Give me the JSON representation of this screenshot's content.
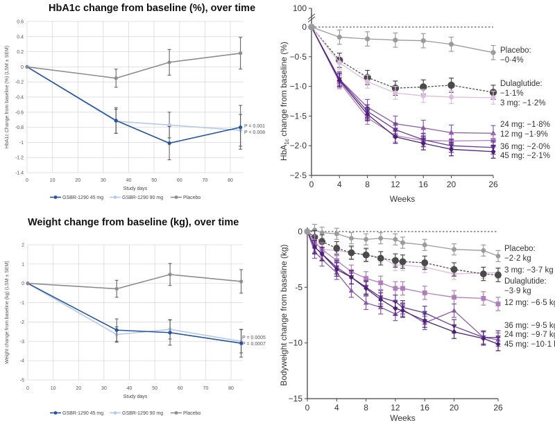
{
  "chart_data": [
    {
      "type": "line",
      "title": "HbA1c change from baseline (%), over time",
      "xlabel": "Study days",
      "ylabel": "HbA1c Change from baseline (%) (LSM ± SEM)",
      "xlim": [
        0,
        85
      ],
      "ylim": [
        -1.4,
        0.6
      ],
      "xticks": [
        "0",
        "10",
        "20",
        "30",
        "40",
        "50",
        "60",
        "70",
        "80"
      ],
      "yticks": [
        "0.6",
        "0.4",
        "0.2",
        "0",
        "-0.2",
        "-0.4",
        "-0.6",
        "-0.8",
        "-1",
        "-1.2",
        "-1.4"
      ],
      "grid": true,
      "legend": "bottom",
      "x": [
        0,
        35,
        56,
        84
      ],
      "series": [
        {
          "name": "GSBR-1290 45 mg",
          "color": "#2452a4",
          "values": [
            0,
            -0.71,
            -1.01,
            -0.8
          ],
          "sem": [
            0,
            0.17,
            0.22,
            0.29
          ]
        },
        {
          "name": "GSBR-1290 90 mg",
          "color": "#b4c9ee",
          "values": [
            0,
            -0.72,
            -0.77,
            -0.84
          ],
          "sem": [
            0,
            0.16,
            0.17,
            0.21
          ]
        },
        {
          "name": "Placebo",
          "color": "#8c8c8c",
          "values": [
            0,
            -0.15,
            0.06,
            0.18
          ],
          "sem": [
            0,
            0.12,
            0.17,
            0.21
          ]
        }
      ],
      "annotations": [
        "P = 0.001",
        "P = 0.008"
      ]
    },
    {
      "type": "line",
      "title": "Weight change from baseline (kg), over time",
      "xlabel": "Study days",
      "ylabel": "Weight change from baseline (kg) (LSM ± SEM)",
      "xlim": [
        0,
        85
      ],
      "ylim": [
        -5,
        2
      ],
      "xticks": [
        "0",
        "10",
        "20",
        "30",
        "40",
        "50",
        "60",
        "70",
        "80"
      ],
      "yticks": [
        "2",
        "1",
        "0",
        "-1",
        "-2",
        "-3",
        "-4",
        "-5"
      ],
      "grid": true,
      "legend": "bottom",
      "x": [
        0,
        35,
        56,
        84
      ],
      "series": [
        {
          "name": "GSBR-1290 45 mg",
          "color": "#2452a4",
          "values": [
            0,
            -2.42,
            -2.55,
            -3.1
          ],
          "sem": [
            0,
            0.58,
            0.65,
            0.72
          ]
        },
        {
          "name": "GSBR-1290 90 mg",
          "color": "#b4c9ee",
          "values": [
            0,
            -2.65,
            -2.38,
            -3.0
          ],
          "sem": [
            0,
            0.4,
            0.5,
            0.6
          ]
        },
        {
          "name": "Placebo",
          "color": "#8c8c8c",
          "values": [
            0,
            -0.28,
            0.46,
            0.1
          ],
          "sem": [
            0,
            0.44,
            0.57,
            0.61
          ]
        }
      ],
      "annotations": [
        "P = 0.0005",
        "P = 0.0007"
      ]
    },
    {
      "type": "line",
      "xlabel": "Weeks",
      "ylabel_parts": [
        "HbA",
        "1c",
        " change from baseline (%)"
      ],
      "xlim": [
        0,
        26
      ],
      "ylim": [
        -2.5,
        0
      ],
      "axis_break_label": "100",
      "xticks": [
        "0",
        "4",
        "8",
        "12",
        "16",
        "20",
        "26"
      ],
      "yticks": [
        "0",
        "−0·5",
        "−1·0",
        "−1·5",
        "−2·0",
        "−2·5"
      ],
      "grid": false,
      "x": [
        0,
        4,
        8,
        12,
        16,
        20,
        26
      ],
      "series": [
        {
          "label_lines": [
            "Placebo:",
            "−0·4%"
          ],
          "marker": "circle",
          "color": "#9b9b9b",
          "values": [
            0,
            -0.17,
            -0.2,
            -0.22,
            -0.23,
            -0.29,
            -0.43
          ],
          "sem": 0.12
        },
        {
          "label_lines": [
            "Dulaglutide:",
            "−1·1%"
          ],
          "marker": "circle-lg",
          "dashed": true,
          "color": "#4a4a4a",
          "values": [
            0,
            -0.56,
            -0.85,
            -1.03,
            -1.01,
            -0.98,
            -1.1
          ],
          "sem": 0.12
        },
        {
          "label_lines": [
            "3 mg: −1·2%"
          ],
          "marker": "circle",
          "color": "#dcbde0",
          "values": [
            0,
            -0.6,
            -0.92,
            -1.11,
            -1.16,
            -1.18,
            -1.19
          ],
          "sem": 0.11
        },
        {
          "label_lines": [
            "24 mg: −1·8%"
          ],
          "marker": "triangle",
          "color": "#8758ab",
          "values": [
            0,
            -0.88,
            -1.35,
            -1.63,
            -1.7,
            -1.78,
            -1.79
          ],
          "sem": 0.13
        },
        {
          "label_lines": [
            "12 mg −1·9%"
          ],
          "marker": "square",
          "color": "#b07cc0",
          "values": [
            0,
            -0.93,
            -1.53,
            -1.83,
            -1.91,
            -1.92,
            -1.91
          ],
          "sem": 0.11
        },
        {
          "label_lines": [
            "36 mg: −2·0%"
          ],
          "marker": "tri-down",
          "color": "#66389a",
          "values": [
            0,
            -0.88,
            -1.42,
            -1.73,
            -1.9,
            -2.0,
            -2.03
          ],
          "sem": 0.11
        },
        {
          "label_lines": [
            "45 mg: −2·1%"
          ],
          "marker": "diamond",
          "color": "#4b1f7a",
          "values": [
            0,
            -0.9,
            -1.47,
            -1.85,
            -1.96,
            -2.06,
            -2.1
          ],
          "sem": 0.11
        }
      ]
    },
    {
      "type": "line",
      "xlabel": "Weeks",
      "ylabel": "Bodyweight change from baseline (kg)",
      "xlim": [
        0,
        26
      ],
      "ylim": [
        -15,
        0
      ],
      "xticks": [
        "0",
        "4",
        "8",
        "12",
        "16",
        "20",
        "26"
      ],
      "yticks": [
        "0",
        "-5",
        "−10",
        "−15"
      ],
      "grid": false,
      "x": [
        0,
        1,
        2,
        4,
        6,
        8,
        10,
        12,
        13,
        16,
        20,
        24,
        26
      ],
      "series": [
        {
          "label_lines": [
            "Placebo:",
            "−2·2 kg"
          ],
          "marker": "circle",
          "color": "#9b9b9b",
          "values": [
            0,
            0.15,
            -0.1,
            -0.2,
            -0.6,
            -0.7,
            -0.6,
            -0.7,
            -1.0,
            -1.2,
            -1.6,
            -1.7,
            -2.2
          ],
          "sem": 0.5
        },
        {
          "label_lines": [
            "3 mg: −3·7 kg"
          ],
          "marker": "circle",
          "color": "#dcbde0",
          "values": [
            0,
            -0.9,
            -1.6,
            -1.7,
            -1.9,
            -2.1,
            -2.3,
            -3.0,
            -3.0,
            -3.2,
            -3.8,
            -3.7,
            -3.7
          ],
          "sem": 0.5
        },
        {
          "label_lines": [
            "Dulaglutide:",
            "−3·9 kg"
          ],
          "marker": "circle-lg",
          "dashed": true,
          "color": "#4a4a4a",
          "values": [
            0,
            -0.5,
            -0.9,
            -1.5,
            -1.9,
            -2.1,
            -2.4,
            -2.6,
            -2.7,
            -2.8,
            -3.4,
            -3.8,
            -3.9
          ],
          "sem": 0.6
        },
        {
          "label_lines": [
            "12 mg: −6·5 kg"
          ],
          "marker": "square",
          "color": "#b07cc0",
          "values": [
            0,
            -0.9,
            -1.6,
            -2.6,
            -3.6,
            -4.2,
            -4.6,
            -5.1,
            -5.1,
            -5.5,
            -5.9,
            -6.0,
            -6.5
          ],
          "sem": 0.6
        },
        {
          "label_lines": [
            "36 mg: −9·5 kg"
          ],
          "marker": "tri-down",
          "color": "#66389a",
          "values": [
            0,
            -1.4,
            -2.0,
            -3.2,
            -4.1,
            -5.0,
            -5.9,
            -6.3,
            -6.8,
            -7.3,
            -8.5,
            -9.5,
            -9.5
          ],
          "sem": 0.6
        },
        {
          "label_lines": [
            "24 mg: −9·7 kg"
          ],
          "marker": "triangle",
          "color": "#8758ab",
          "values": [
            0,
            -1.8,
            -2.5,
            -3.7,
            -5.3,
            -6.4,
            -6.8,
            -7.4,
            -7.0,
            -8.2,
            -7.1,
            -9.5,
            -9.7
          ],
          "sem": 0.6
        },
        {
          "label_lines": [
            "45 mg: −10·1 kg"
          ],
          "marker": "diamond",
          "color": "#4b1f7a",
          "values": [
            0,
            -1.4,
            -2.0,
            -3.4,
            -4.1,
            -5.1,
            -6.1,
            -6.9,
            -7.1,
            -8.0,
            -9.0,
            -9.6,
            -10.1
          ],
          "sem": 0.6
        }
      ]
    }
  ]
}
